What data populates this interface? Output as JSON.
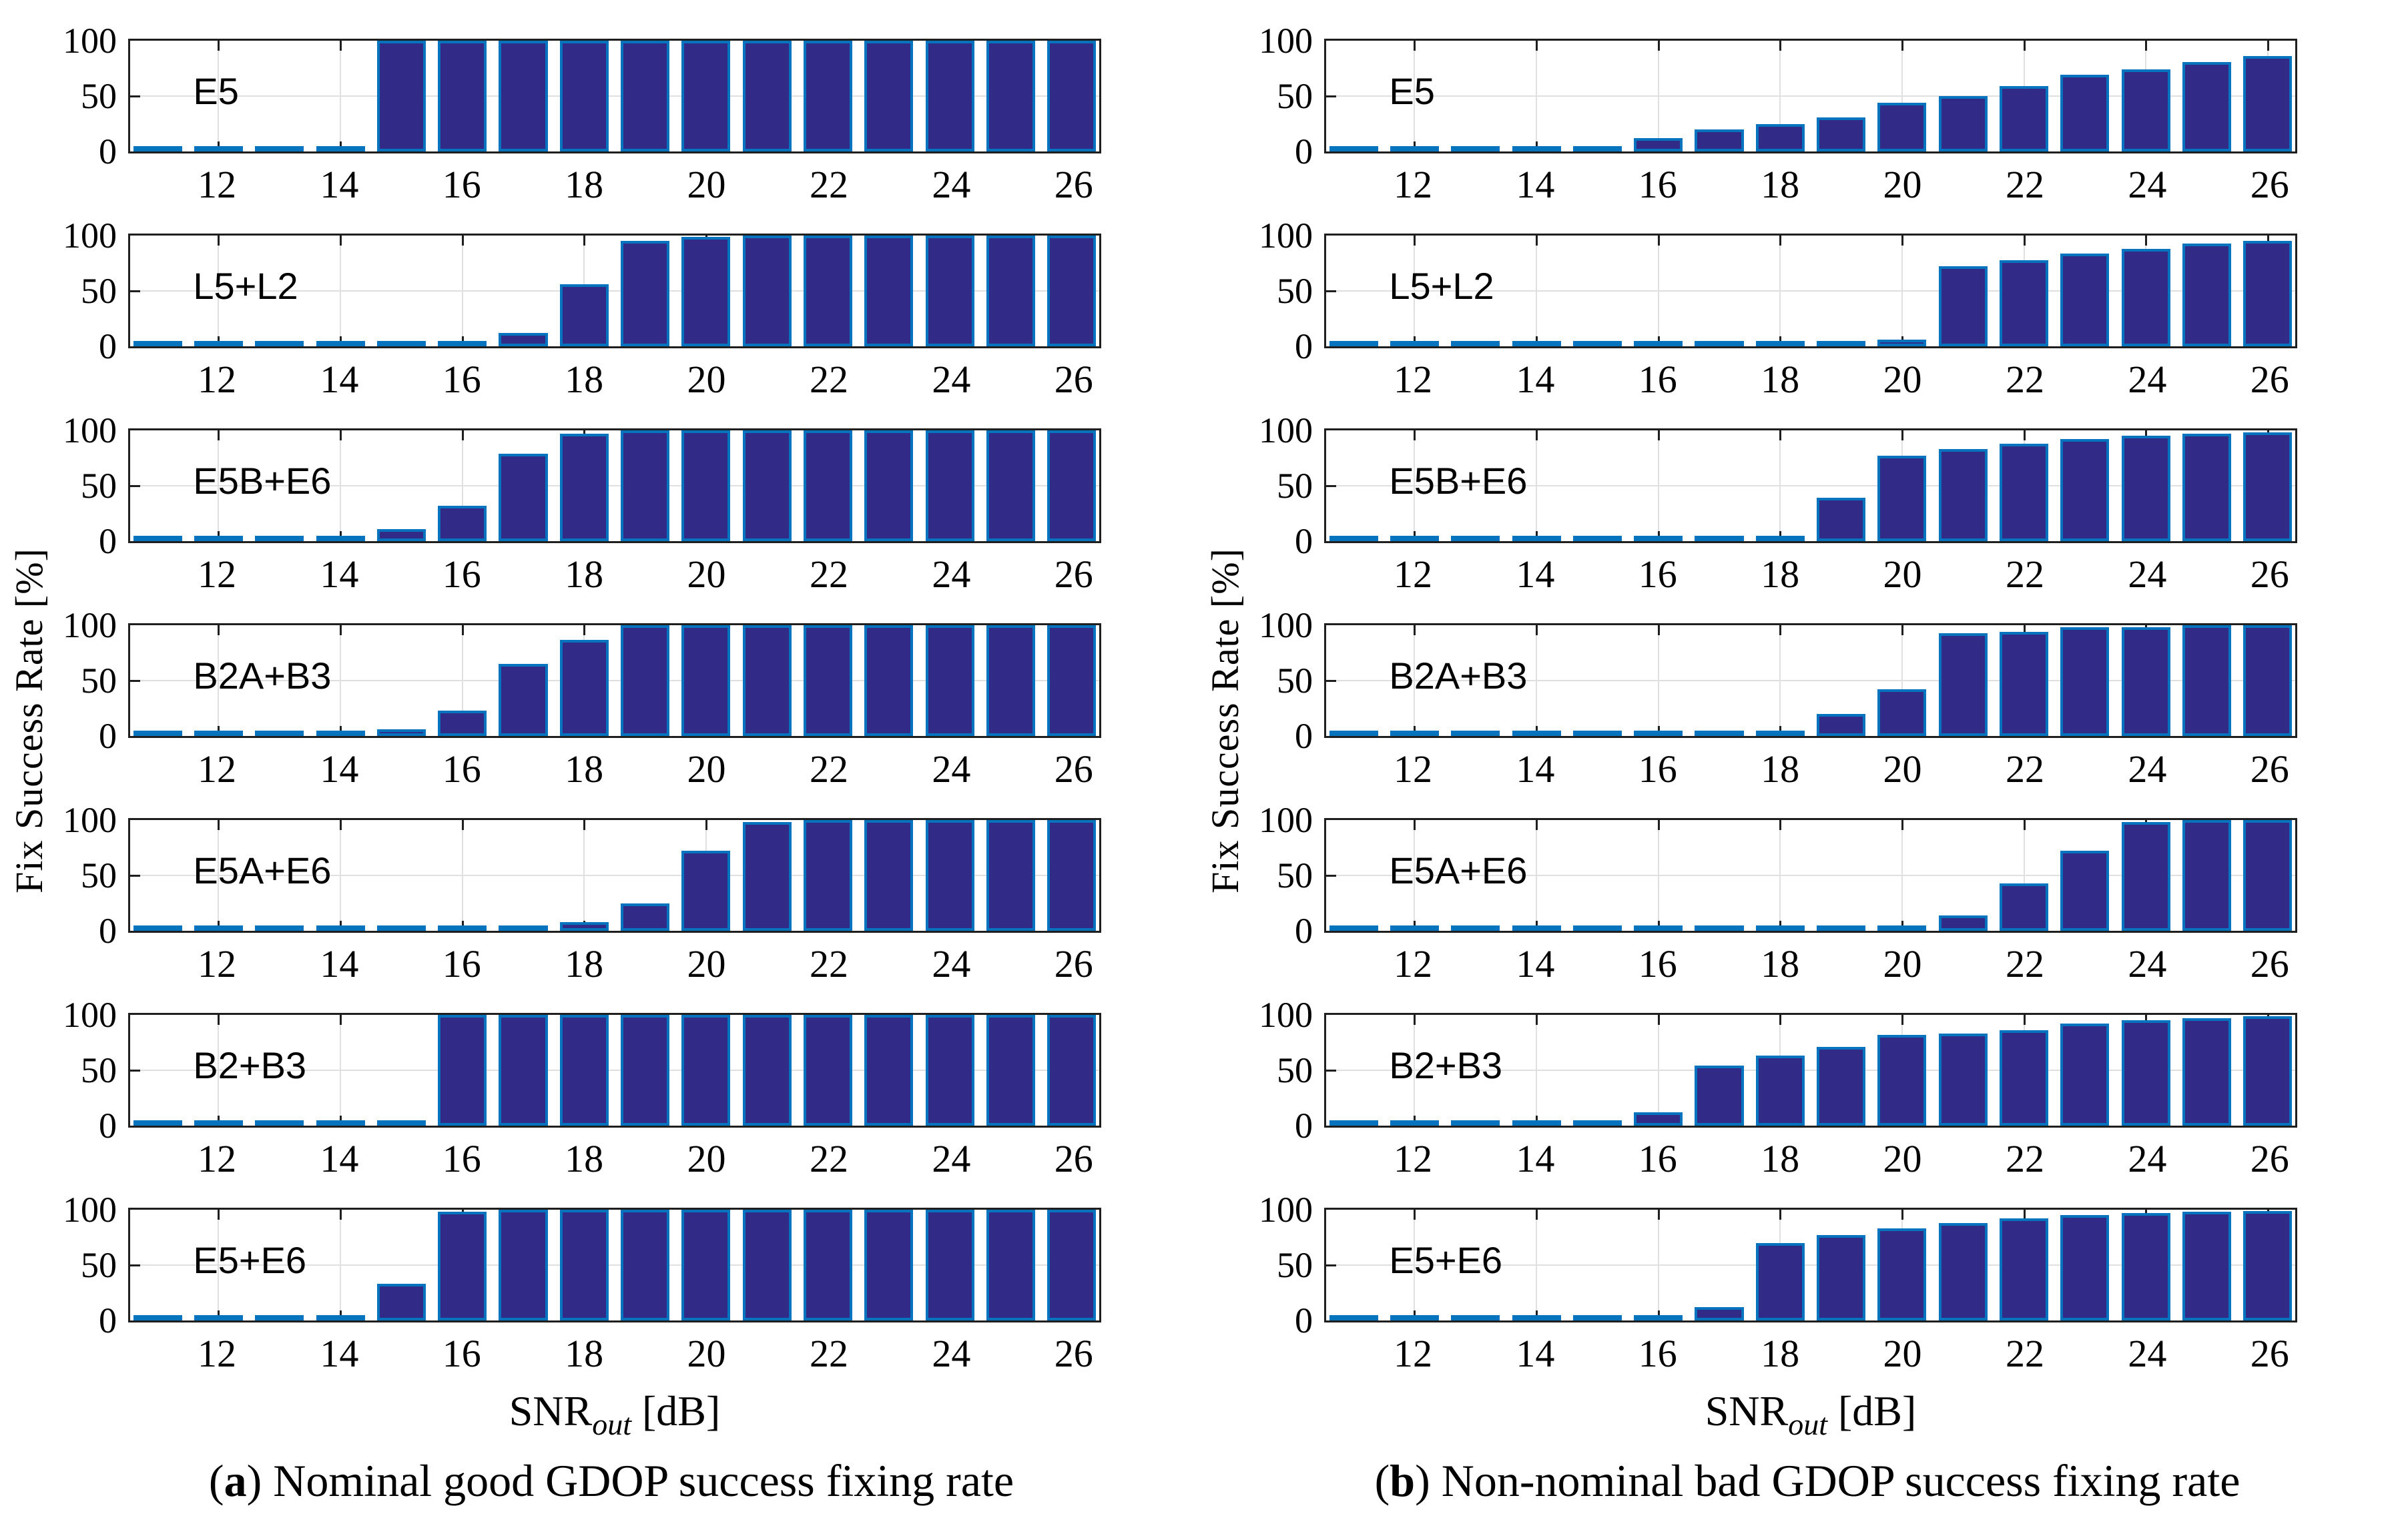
{
  "figure": {
    "ylabel": "Fix Success Rate [%]",
    "xlabel": {
      "main": "SNR",
      "sub": "out",
      "unit": " [dB]"
    },
    "colors": {
      "bar_fill": "#322A87",
      "bar_edge": "#0673BE",
      "grid": "#e0e0e0",
      "axis": "#1f1f1f"
    }
  },
  "captions": {
    "a": {
      "open": "(",
      "letter": "a",
      "close": ") ",
      "text": "Nominal good GDOP success fixing rate"
    },
    "b": {
      "open": "(",
      "letter": "b",
      "close": ") ",
      "text": "Non-nominal bad GDOP success fixing rate"
    }
  },
  "chart_data": {
    "type": "bar",
    "x": [
      11,
      12,
      13,
      14,
      15,
      16,
      17,
      18,
      19,
      20,
      21,
      22,
      23,
      24,
      25,
      26
    ],
    "xticks": [
      12,
      14,
      16,
      18,
      20,
      22,
      24,
      26
    ],
    "yticks": [
      0,
      50,
      100
    ],
    "ylim": [
      0,
      100
    ],
    "xlim": [
      10.55,
      26.45
    ],
    "bar_width": 0.8,
    "xlabel": "SNR_out [dB]",
    "ylabel": "Fix Success Rate [%]",
    "grid": "on",
    "panels": [
      {
        "column": "a",
        "label": "E5",
        "values": [
          0,
          0,
          0,
          0,
          100,
          100,
          100,
          100,
          100,
          100,
          100,
          100,
          100,
          100,
          100,
          100
        ]
      },
      {
        "column": "a",
        "label": "L5+L2",
        "values": [
          0,
          0,
          0,
          0,
          0,
          5,
          12,
          56,
          95,
          99,
          100,
          100,
          100,
          100,
          100,
          100
        ]
      },
      {
        "column": "a",
        "label": "E5B+E6",
        "values": [
          0,
          0,
          0,
          0,
          11,
          32,
          79,
          97,
          100,
          100,
          100,
          100,
          100,
          100,
          100,
          100
        ]
      },
      {
        "column": "a",
        "label": "B2A+B3",
        "values": [
          0,
          0,
          0,
          0,
          6,
          23,
          65,
          87,
          100,
          100,
          100,
          100,
          100,
          100,
          100,
          100
        ]
      },
      {
        "column": "a",
        "label": "E5A+E6",
        "values": [
          0,
          0,
          0,
          0,
          0,
          1,
          2,
          8,
          25,
          72,
          98,
          100,
          100,
          100,
          100,
          100
        ]
      },
      {
        "column": "a",
        "label": "B2+B3",
        "values": [
          0,
          0,
          0,
          0,
          0,
          100,
          100,
          100,
          100,
          100,
          100,
          100,
          100,
          100,
          100,
          100
        ]
      },
      {
        "column": "a",
        "label": "E5+E6",
        "values": [
          0,
          0,
          0,
          0,
          33,
          98,
          100,
          100,
          100,
          100,
          100,
          100,
          100,
          100,
          100,
          100
        ]
      },
      {
        "column": "b",
        "label": "E5",
        "values": [
          0,
          0,
          0,
          0,
          5,
          12,
          20,
          25,
          31,
          44,
          50,
          59,
          69,
          74,
          81,
          86
        ]
      },
      {
        "column": "b",
        "label": "L5+L2",
        "values": [
          0,
          0,
          0,
          0,
          0,
          1,
          1,
          2,
          3,
          6,
          72,
          78,
          84,
          88,
          93,
          95
        ]
      },
      {
        "column": "b",
        "label": "E5B+E6",
        "values": [
          0,
          0,
          0,
          0,
          0,
          0,
          1,
          5,
          39,
          77,
          83,
          88,
          92,
          95,
          97,
          98
        ]
      },
      {
        "column": "b",
        "label": "B2A+B3",
        "values": [
          0,
          0,
          0,
          0,
          0,
          1,
          2,
          4,
          20,
          42,
          93,
          94,
          98,
          98,
          100,
          100
        ]
      },
      {
        "column": "b",
        "label": "E5A+E6",
        "values": [
          0,
          0,
          0,
          0,
          0,
          0,
          0,
          0,
          1,
          2,
          14,
          43,
          72,
          98,
          100,
          100
        ]
      },
      {
        "column": "b",
        "label": "B2+B3",
        "values": [
          0,
          0,
          0,
          0,
          0,
          12,
          54,
          63,
          71,
          82,
          83,
          86,
          92,
          95,
          97,
          99
        ]
      },
      {
        "column": "b",
        "label": "E5+E6",
        "values": [
          0,
          0,
          0,
          0,
          0,
          5,
          12,
          70,
          77,
          83,
          88,
          92,
          95,
          97,
          98,
          99
        ]
      }
    ]
  }
}
